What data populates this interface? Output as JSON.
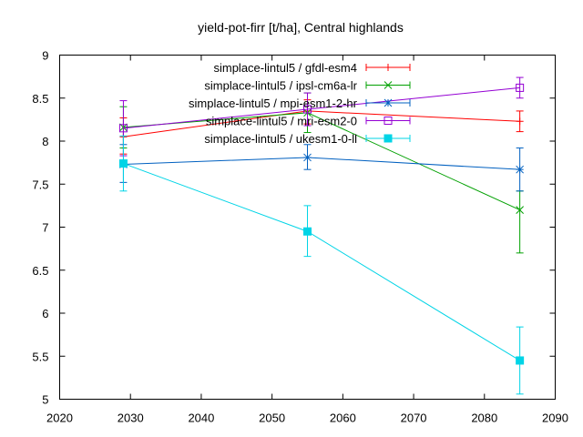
{
  "chart_data": {
    "type": "line",
    "title": "yield-pot-firr [t/ha], Central highlands",
    "xlabel": "",
    "ylabel": "",
    "xlim": [
      2020,
      2090
    ],
    "ylim": [
      5,
      9
    ],
    "xticks": [
      2020,
      2030,
      2040,
      2050,
      2060,
      2070,
      2080,
      2090
    ],
    "yticks": [
      5,
      5.5,
      6,
      6.5,
      7,
      7.5,
      8,
      8.5,
      9
    ],
    "xtick_labels": [
      "2020",
      "2030",
      "2040",
      "2050",
      "2060",
      "2070",
      "2080",
      "2090"
    ],
    "ytick_labels": [
      "5",
      "5.5",
      "6",
      "6.5",
      "7",
      "7.5",
      "8",
      "8.5",
      "9"
    ],
    "grid": false,
    "legend_position": "top-right",
    "series": [
      {
        "name": "simplace-lintul5 / gfdl-esm4",
        "color": "#ff0000",
        "marker": "plus",
        "points": [
          {
            "x": 2029,
            "y": 8.05,
            "err_low": 7.85,
            "err_high": 8.27
          },
          {
            "x": 2055,
            "y": 8.35,
            "err_low": 8.2,
            "err_high": 8.48
          },
          {
            "x": 2085,
            "y": 8.23,
            "err_low": 8.11,
            "err_high": 8.35
          }
        ]
      },
      {
        "name": "simplace-lintul5 / ipsl-cm6a-lr",
        "color": "#00a000",
        "marker": "cross",
        "points": [
          {
            "x": 2029,
            "y": 8.16,
            "err_low": 7.92,
            "err_high": 8.4
          },
          {
            "x": 2055,
            "y": 8.33,
            "err_low": 8.1,
            "err_high": 8.56
          },
          {
            "x": 2085,
            "y": 7.2,
            "err_low": 6.7,
            "err_high": 7.42
          }
        ]
      },
      {
        "name": "simplace-lintul5 / mpi-esm1-2-hr",
        "color": "#0060c0",
        "marker": "star",
        "points": [
          {
            "x": 2029,
            "y": 7.73,
            "err_low": 7.52,
            "err_high": 7.96
          },
          {
            "x": 2055,
            "y": 7.81,
            "err_low": 7.67,
            "err_high": 7.96
          },
          {
            "x": 2085,
            "y": 7.67,
            "err_low": 7.42,
            "err_high": 7.92
          }
        ]
      },
      {
        "name": "simplace-lintul5 / mri-esm2-0",
        "color": "#9400d3",
        "marker": "box",
        "points": [
          {
            "x": 2029,
            "y": 8.15,
            "err_low": 7.83,
            "err_high": 8.47
          },
          {
            "x": 2055,
            "y": 8.37,
            "err_low": 8.18,
            "err_high": 8.56
          },
          {
            "x": 2085,
            "y": 8.62,
            "err_low": 8.5,
            "err_high": 8.74
          }
        ]
      },
      {
        "name": "simplace-lintul5 / ukesm1-0-ll",
        "color": "#00d4e6",
        "marker": "filled-box",
        "points": [
          {
            "x": 2029,
            "y": 7.74,
            "err_low": 7.42,
            "err_high": 8.06
          },
          {
            "x": 2055,
            "y": 6.95,
            "err_low": 6.66,
            "err_high": 7.25
          },
          {
            "x": 2085,
            "y": 5.45,
            "err_low": 5.06,
            "err_high": 5.84
          }
        ]
      }
    ]
  }
}
